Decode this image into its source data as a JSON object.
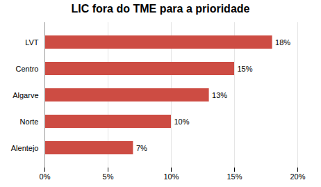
{
  "chart_data": {
    "type": "bar",
    "orientation": "horizontal",
    "title": "LIC fora do TME para a prioridade",
    "categories": [
      "LVT",
      "Centro",
      "Algarve",
      "Norte",
      "Alentejo"
    ],
    "values": [
      0.18,
      0.15,
      0.13,
      0.1,
      0.07
    ],
    "value_labels": [
      "18%",
      "15%",
      "13%",
      "10%",
      "7%"
    ],
    "data_labels": true,
    "color": "#CD4C43",
    "xlim": [
      0,
      0.2
    ],
    "xticks": [
      {
        "value": 0.0,
        "label": "0%"
      },
      {
        "value": 0.05,
        "label": "5%"
      },
      {
        "value": 0.1,
        "label": "10%"
      },
      {
        "value": 0.15,
        "label": "15%"
      },
      {
        "value": 0.2,
        "label": "20%"
      }
    ],
    "grid": true
  }
}
